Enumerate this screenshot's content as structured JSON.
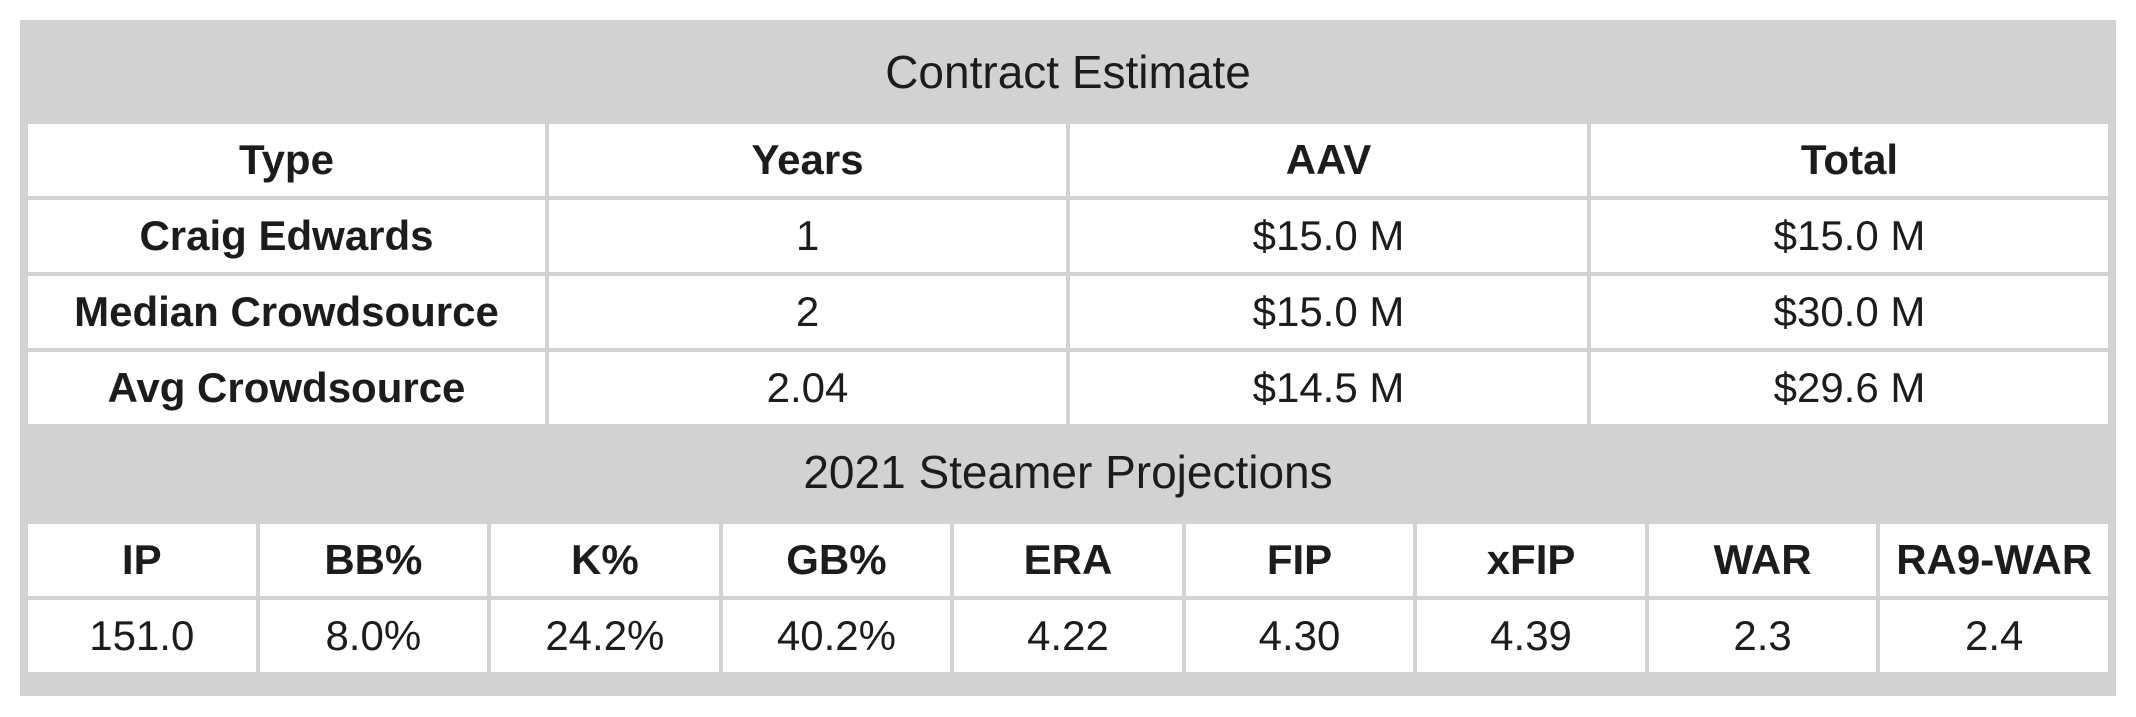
{
  "contract": {
    "title": "Contract Estimate",
    "headers": [
      "Type",
      "Years",
      "AAV",
      "Total"
    ],
    "rows": [
      [
        "Craig Edwards",
        "1",
        "$15.0 M",
        "$15.0 M"
      ],
      [
        "Median Crowdsource",
        "2",
        "$15.0 M",
        "$30.0 M"
      ],
      [
        "Avg Crowdsource",
        "2.04",
        "$14.5 M",
        "$29.6 M"
      ]
    ]
  },
  "projections": {
    "title": "2021 Steamer Projections",
    "headers": [
      "IP",
      "BB%",
      "K%",
      "GB%",
      "ERA",
      "FIP",
      "xFIP",
      "WAR",
      "RA9-WAR"
    ],
    "values": [
      "151.0",
      "8.0%",
      "24.2%",
      "40.2%",
      "4.22",
      "4.30",
      "4.39",
      "2.3",
      "2.4"
    ]
  }
}
